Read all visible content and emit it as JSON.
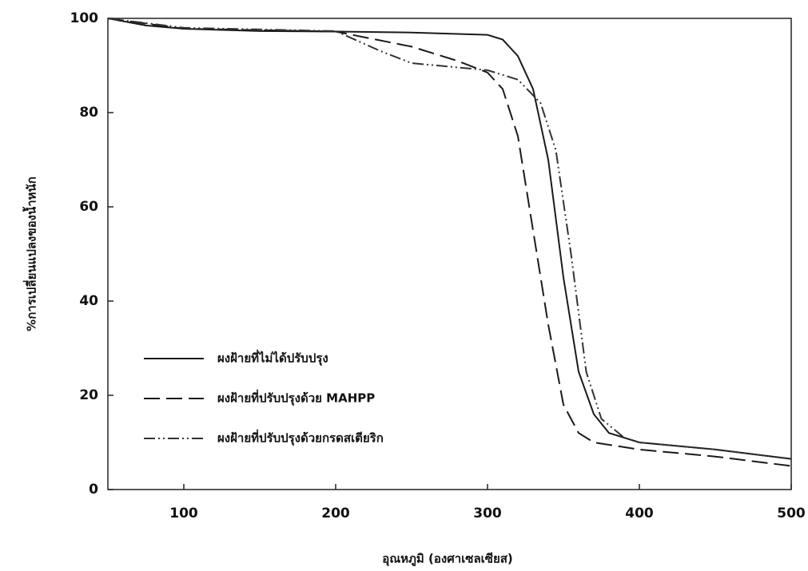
{
  "chart_data": {
    "type": "line",
    "xlabel": "อุณหภูมิ (องศาเซลเซียส)",
    "ylabel": "%การเปลี่ยนแปลงของน้ำหนัก",
    "xlim": [
      50,
      500
    ],
    "xticks": [
      100,
      200,
      300,
      400,
      500
    ],
    "ylim": [
      0,
      100
    ],
    "yticks": [
      0,
      20,
      40,
      60,
      80,
      100
    ],
    "series": [
      {
        "name": "ผงฝ้ายที่ไม่ได้ปรับปรุง",
        "color": "#1a1a1a",
        "dash": "solid",
        "x": [
          50,
          75,
          100,
          150,
          200,
          250,
          300,
          310,
          320,
          330,
          340,
          350,
          360,
          370,
          380,
          400,
          450,
          500
        ],
        "values": [
          100,
          98.5,
          97.8,
          97.3,
          97.2,
          97,
          96.5,
          95.5,
          92,
          85,
          70,
          45,
          25,
          16,
          12,
          10,
          8.5,
          6.5
        ]
      },
      {
        "name": "ผงฝ้ายที่ปรับปรุงด้วย MAHPP",
        "color": "#1a1a1a",
        "dash": "dashed",
        "x": [
          50,
          100,
          200,
          250,
          280,
          300,
          310,
          320,
          330,
          340,
          350,
          360,
          370,
          400,
          450,
          500
        ],
        "values": [
          100,
          97.8,
          97.2,
          94,
          91,
          88.5,
          85,
          75,
          55,
          35,
          18,
          12,
          10,
          8.5,
          7,
          5
        ]
      },
      {
        "name": "ผงฝ้ายที่ปรับปรุงด้วยกรดสเตียริก",
        "color": "#333333",
        "dash": "dashdotdot",
        "x": [
          50,
          100,
          200,
          230,
          250,
          300,
          320,
          335,
          345,
          355,
          365,
          375,
          390,
          400,
          450,
          500
        ],
        "values": [
          100,
          98,
          97.3,
          93,
          90.5,
          89,
          87,
          82,
          72,
          50,
          25,
          15,
          11,
          10,
          8.5,
          6.5
        ]
      }
    ]
  }
}
